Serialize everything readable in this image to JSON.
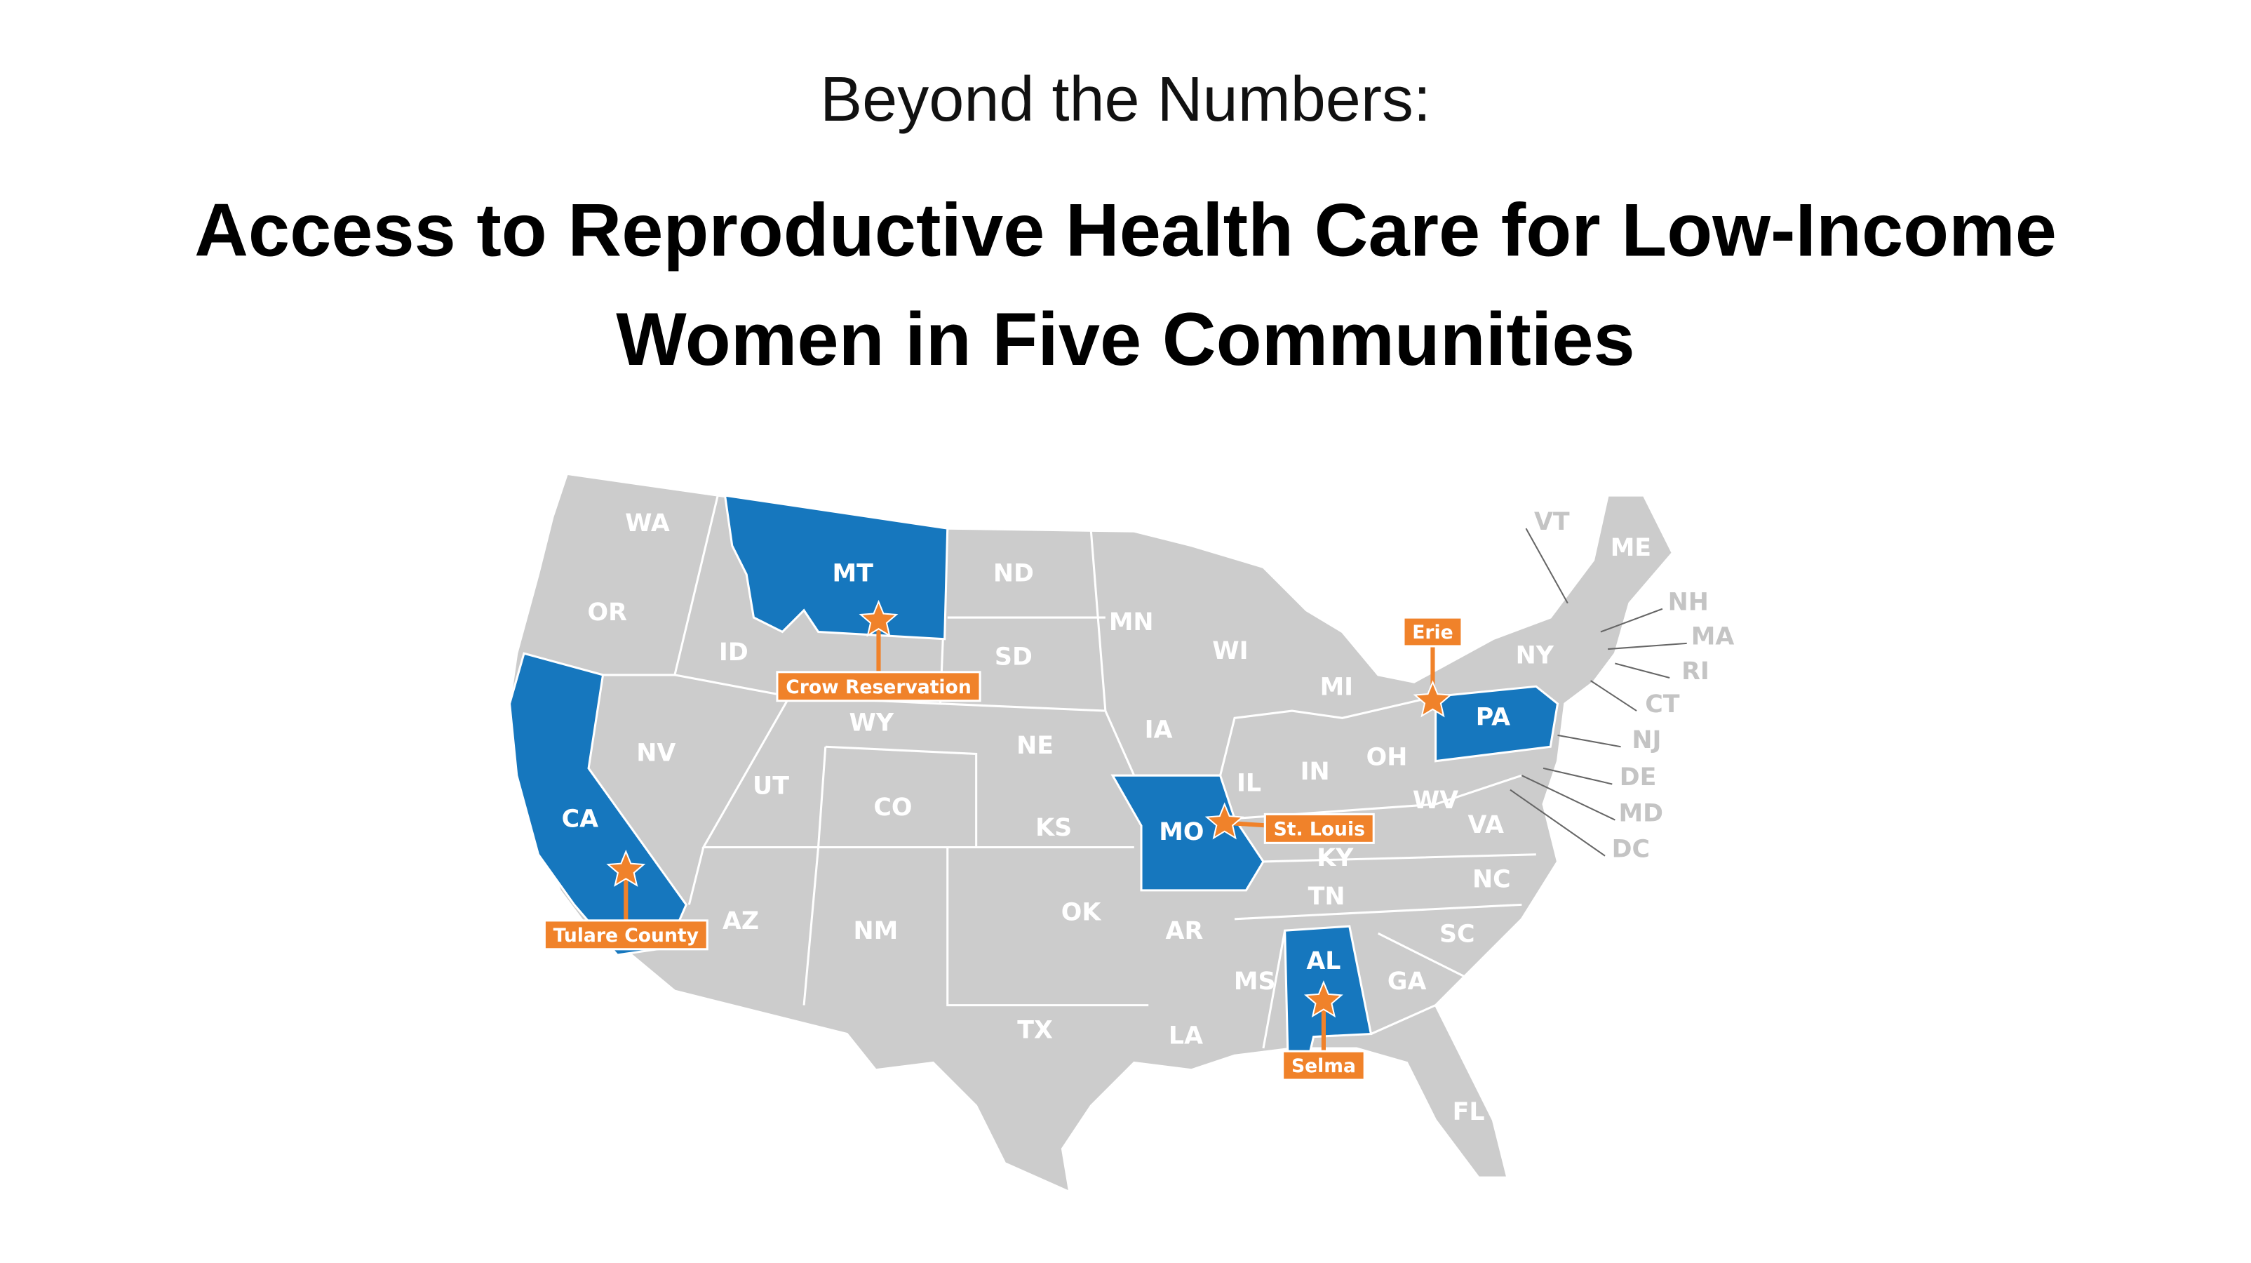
{
  "header": {
    "subtitle": "Beyond the Numbers:",
    "title_lines": [
      "Access to Reproductive Health Care for Low-Income",
      "Women in Five Communities"
    ]
  },
  "map": {
    "base_color": "#cccccc",
    "highlight_color": "#1677be",
    "marker_color": "#f0822a",
    "states": [
      {
        "label": "WA",
        "highlighted": false
      },
      {
        "label": "OR",
        "highlighted": false
      },
      {
        "label": "ID",
        "highlighted": false
      },
      {
        "label": "MT",
        "highlighted": true
      },
      {
        "label": "ND",
        "highlighted": false
      },
      {
        "label": "MN",
        "highlighted": false
      },
      {
        "label": "WI",
        "highlighted": false
      },
      {
        "label": "MI",
        "highlighted": false
      },
      {
        "label": "SD",
        "highlighted": false
      },
      {
        "label": "WY",
        "highlighted": false
      },
      {
        "label": "NE",
        "highlighted": false
      },
      {
        "label": "IA",
        "highlighted": false
      },
      {
        "label": "IL",
        "highlighted": false
      },
      {
        "label": "IN",
        "highlighted": false
      },
      {
        "label": "OH",
        "highlighted": false
      },
      {
        "label": "NV",
        "highlighted": false
      },
      {
        "label": "UT",
        "highlighted": false
      },
      {
        "label": "CO",
        "highlighted": false
      },
      {
        "label": "KS",
        "highlighted": false
      },
      {
        "label": "MO",
        "highlighted": true
      },
      {
        "label": "KY",
        "highlighted": false
      },
      {
        "label": "WV",
        "highlighted": false
      },
      {
        "label": "VA",
        "highlighted": false
      },
      {
        "label": "CA",
        "highlighted": true
      },
      {
        "label": "AZ",
        "highlighted": false
      },
      {
        "label": "NM",
        "highlighted": false
      },
      {
        "label": "OK",
        "highlighted": false
      },
      {
        "label": "AR",
        "highlighted": false
      },
      {
        "label": "TN",
        "highlighted": false
      },
      {
        "label": "NC",
        "highlighted": false
      },
      {
        "label": "SC",
        "highlighted": false
      },
      {
        "label": "MS",
        "highlighted": false
      },
      {
        "label": "AL",
        "highlighted": true
      },
      {
        "label": "GA",
        "highlighted": false
      },
      {
        "label": "LA",
        "highlighted": false
      },
      {
        "label": "TX",
        "highlighted": false
      },
      {
        "label": "FL",
        "highlighted": false
      },
      {
        "label": "PA",
        "highlighted": true
      },
      {
        "label": "NY",
        "highlighted": false
      },
      {
        "label": "VT",
        "highlighted": false,
        "callout": true
      },
      {
        "label": "ME",
        "highlighted": false
      },
      {
        "label": "NH",
        "highlighted": false,
        "callout": true
      },
      {
        "label": "MA",
        "highlighted": false,
        "callout": true
      },
      {
        "label": "RI",
        "highlighted": false,
        "callout": true
      },
      {
        "label": "CT",
        "highlighted": false,
        "callout": true
      },
      {
        "label": "NJ",
        "highlighted": false,
        "callout": true
      },
      {
        "label": "DE",
        "highlighted": false,
        "callout": true
      },
      {
        "label": "MD",
        "highlighted": false,
        "callout": true
      },
      {
        "label": "DC",
        "highlighted": false,
        "callout": true
      }
    ],
    "sites": [
      {
        "label": "Crow Reservation"
      },
      {
        "label": "Tulare County"
      },
      {
        "label": "St. Louis"
      },
      {
        "label": "Erie"
      },
      {
        "label": "Selma"
      }
    ]
  }
}
